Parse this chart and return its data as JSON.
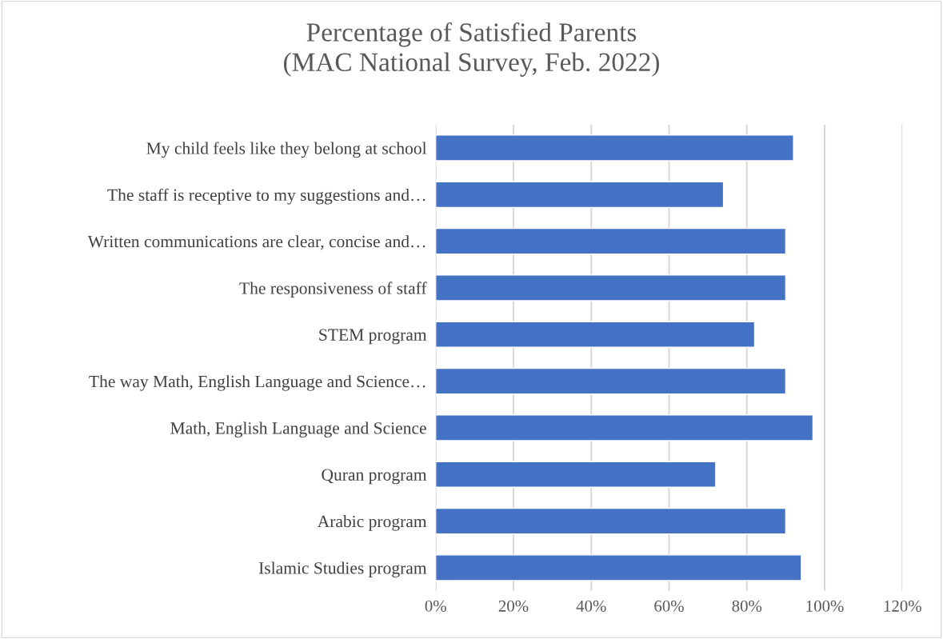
{
  "chart_data": {
    "type": "bar",
    "orientation": "horizontal",
    "title": "Percentage of Satisfied Parents\n(MAC National Survey, Feb. 2022)",
    "categories": [
      "My child feels like they belong at school",
      "The staff is receptive to my suggestions and…",
      "Written communications are clear, concise and…",
      "The responsiveness of staff",
      "STEM program",
      "The way Math, English Language and Science…",
      "Math, English Language and Science",
      "Quran program",
      "Arabic program",
      "Islamic Studies program"
    ],
    "values": [
      92,
      74,
      90,
      90,
      82,
      90,
      97,
      72,
      90,
      94
    ],
    "color": "#4472c4",
    "xlim": [
      0,
      120
    ],
    "xticks": [
      {
        "value": 0,
        "label": "0%"
      },
      {
        "value": 20,
        "label": "20%"
      },
      {
        "value": 40,
        "label": "40%"
      },
      {
        "value": 60,
        "label": "60%"
      },
      {
        "value": 80,
        "label": "80%"
      },
      {
        "value": 100,
        "label": "100%"
      },
      {
        "value": 120,
        "label": "120%"
      }
    ],
    "grid": "x"
  }
}
